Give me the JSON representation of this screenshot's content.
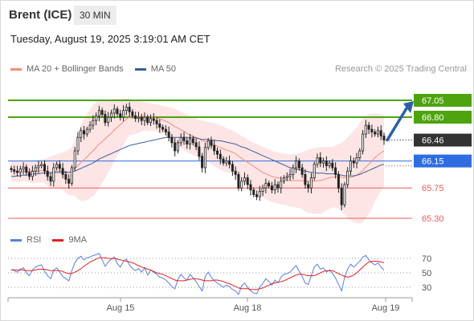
{
  "header": {
    "instrument": "Brent (ICE)",
    "timeframe": "30 MIN",
    "datetime": "Tuesday, August 19, 2025 3:19:01 AM CET"
  },
  "legend_main": {
    "ma20": {
      "label": "MA 20 + Bollinger Bands",
      "color": "#f28b82"
    },
    "ma50": {
      "label": "MA 50",
      "color": "#3d5c98"
    }
  },
  "legend_rsi": {
    "rsi": {
      "label": "RSI",
      "color": "#5b7fd6"
    },
    "ma9": {
      "label": "9MA",
      "color": "#e02020"
    }
  },
  "credit": "Research © 2025 Trading Central",
  "chart_data": [
    {
      "type": "candlestick",
      "ylim": [
        65.2,
        67.15
      ],
      "x_ticks": [
        "Aug 15",
        "Aug 18",
        "Aug 19"
      ],
      "current_price": {
        "value": 66.46,
        "label": "66.46",
        "color": "#333333"
      },
      "levels": [
        {
          "value": 67.05,
          "label": "67.05",
          "type": "resistance",
          "color": "#4ea30e"
        },
        {
          "value": 66.8,
          "label": "66.80",
          "type": "resistance",
          "color": "#4ea30e"
        },
        {
          "value": 66.15,
          "label": "66.15",
          "type": "pivot",
          "color": "#2f6de1"
        },
        {
          "value": 65.75,
          "label": "65.75",
          "type": "support",
          "color": "#e85c5c"
        },
        {
          "value": 65.3,
          "label": "65.30",
          "type": "support",
          "color": "#e85c5c"
        }
      ],
      "close_series": [
        66.02,
        66.0,
        65.98,
        66.03,
        66.06,
        65.98,
        65.92,
        66.0,
        66.05,
        66.08,
        66.1,
        66.0,
        65.92,
        65.85,
        66.05,
        66.1,
        66.04,
        65.95,
        65.88,
        65.82,
        66.05,
        66.3,
        66.5,
        66.6,
        66.55,
        66.62,
        66.68,
        66.75,
        66.82,
        66.9,
        66.84,
        66.72,
        66.8,
        66.86,
        66.92,
        66.85,
        66.8,
        66.9,
        66.95,
        66.88,
        66.82,
        66.78,
        66.8,
        66.75,
        66.8,
        66.72,
        66.78,
        66.75,
        66.7,
        66.65,
        66.62,
        66.58,
        66.5,
        66.42,
        66.3,
        66.42,
        66.5,
        66.45,
        66.4,
        66.48,
        66.42,
        66.36,
        66.22,
        66.05,
        66.35,
        66.45,
        66.38,
        66.3,
        66.25,
        66.18,
        66.12,
        66.15,
        66.1,
        66.0,
        65.95,
        65.75,
        65.85,
        65.9,
        65.8,
        65.72,
        65.65,
        65.62,
        65.7,
        65.75,
        65.82,
        65.78,
        65.72,
        65.8,
        65.75,
        65.85,
        65.9,
        65.92,
        65.95,
        66.05,
        66.15,
        66.05,
        65.95,
        65.8,
        65.75,
        65.9,
        66.1,
        66.2,
        66.12,
        66.15,
        66.08,
        66.12,
        66.05,
        65.95,
        65.75,
        65.5,
        65.8,
        66.0,
        66.15,
        66.12,
        66.2,
        66.3,
        66.55,
        66.68,
        66.62,
        66.58,
        66.55,
        66.6,
        66.52,
        66.46
      ],
      "ma20_series": [
        66.0,
        65.99,
        65.99,
        65.99,
        66.0,
        66.0,
        65.99,
        65.99,
        65.99,
        66.0,
        66.01,
        66.0,
        65.99,
        65.98,
        65.99,
        66.0,
        66.0,
        66.0,
        65.99,
        65.98,
        66.0,
        66.04,
        66.08,
        66.13,
        66.17,
        66.21,
        66.26,
        66.3,
        66.35,
        66.4,
        66.44,
        66.48,
        66.52,
        66.56,
        66.61,
        66.65,
        66.69,
        66.73,
        66.77,
        66.8,
        66.8,
        66.8,
        66.8,
        66.81,
        66.81,
        66.8,
        66.8,
        66.8,
        66.79,
        66.77,
        66.76,
        66.74,
        66.72,
        66.69,
        66.66,
        66.64,
        66.61,
        66.59,
        66.56,
        66.54,
        66.52,
        66.5,
        66.48,
        66.45,
        66.44,
        66.43,
        66.41,
        66.39,
        66.37,
        66.35,
        66.33,
        66.31,
        66.3,
        66.28,
        66.26,
        66.22,
        66.19,
        66.16,
        66.13,
        66.1,
        66.07,
        66.04,
        66.01,
        65.98,
        65.96,
        65.94,
        65.92,
        65.91,
        65.9,
        65.89,
        65.88,
        65.87,
        65.86,
        65.86,
        65.86,
        65.86,
        65.86,
        65.85,
        65.85,
        65.85,
        65.85,
        65.86,
        65.86,
        65.87,
        65.89,
        65.9,
        65.91,
        65.92,
        65.92,
        65.91,
        65.9,
        65.9,
        65.91,
        65.92,
        65.94,
        65.97,
        66.01,
        66.06,
        66.1,
        66.15,
        66.2,
        66.24,
        66.27,
        66.3
      ],
      "bb_upper_series": [
        66.15,
        66.14,
        66.14,
        66.14,
        66.15,
        66.15,
        66.15,
        66.16,
        66.16,
        66.17,
        66.18,
        66.18,
        66.2,
        66.22,
        66.23,
        66.25,
        66.26,
        66.28,
        66.3,
        66.32,
        66.36,
        66.45,
        66.58,
        66.7,
        66.78,
        66.85,
        66.92,
        66.98,
        67.02,
        67.05,
        67.06,
        67.06,
        67.06,
        67.06,
        67.07,
        67.07,
        67.07,
        67.07,
        67.08,
        67.07,
        67.06,
        67.05,
        67.04,
        67.03,
        67.02,
        67.01,
        67.0,
        67.0,
        66.99,
        66.98,
        66.97,
        66.96,
        66.95,
        66.94,
        66.92,
        66.9,
        66.88,
        66.86,
        66.84,
        66.82,
        66.8,
        66.78,
        66.76,
        66.75,
        66.74,
        66.73,
        66.72,
        66.71,
        66.7,
        66.68,
        66.66,
        66.64,
        66.62,
        66.6,
        66.58,
        66.55,
        66.52,
        66.5,
        66.47,
        66.44,
        66.42,
        66.4,
        66.38,
        66.36,
        66.34,
        66.32,
        66.3,
        66.29,
        66.28,
        66.27,
        66.26,
        66.25,
        66.25,
        66.25,
        66.26,
        66.27,
        66.28,
        66.3,
        66.32,
        66.33,
        66.34,
        66.35,
        66.36,
        66.36,
        66.36,
        66.36,
        66.36,
        66.38,
        66.4,
        66.42,
        66.45,
        66.5,
        66.55,
        66.6,
        66.65,
        66.72,
        66.78,
        66.82,
        66.84,
        66.85,
        66.85,
        66.85,
        66.84,
        66.83
      ],
      "bb_lower_series": [
        65.85,
        65.84,
        65.84,
        65.84,
        65.85,
        65.85,
        65.83,
        65.82,
        65.82,
        65.83,
        65.84,
        65.82,
        65.78,
        65.74,
        65.75,
        65.75,
        65.74,
        65.72,
        65.68,
        65.64,
        65.64,
        65.63,
        65.58,
        65.56,
        65.56,
        65.57,
        65.6,
        65.62,
        65.68,
        65.75,
        65.82,
        65.9,
        65.98,
        66.06,
        66.15,
        66.23,
        66.31,
        66.39,
        66.46,
        66.53,
        66.54,
        66.55,
        66.56,
        66.59,
        66.6,
        66.59,
        66.6,
        66.6,
        66.59,
        66.56,
        66.55,
        66.52,
        66.49,
        66.44,
        66.4,
        66.38,
        66.34,
        66.32,
        66.28,
        66.26,
        66.24,
        66.22,
        66.2,
        66.15,
        66.14,
        66.13,
        66.1,
        66.07,
        66.04,
        66.02,
        66.0,
        65.98,
        65.98,
        65.96,
        65.94,
        65.89,
        65.86,
        65.82,
        65.79,
        65.76,
        65.72,
        65.68,
        65.64,
        65.6,
        65.58,
        65.56,
        65.54,
        65.53,
        65.52,
        65.51,
        65.5,
        65.49,
        65.47,
        65.47,
        65.46,
        65.45,
        65.44,
        65.4,
        65.38,
        65.37,
        65.36,
        65.37,
        65.36,
        65.38,
        65.42,
        65.44,
        65.46,
        65.46,
        65.44,
        65.4,
        65.35,
        65.3,
        65.27,
        65.24,
        65.23,
        65.22,
        65.24,
        65.3,
        65.36,
        65.45,
        65.55,
        65.63,
        65.7,
        65.77
      ],
      "ma50_series": [
        65.92,
        65.92,
        65.93,
        65.93,
        65.94,
        65.94,
        65.95,
        65.95,
        65.96,
        65.96,
        65.97,
        65.97,
        65.97,
        65.97,
        65.98,
        65.98,
        65.98,
        65.98,
        65.98,
        65.98,
        65.99,
        66.0,
        66.02,
        66.04,
        66.06,
        66.08,
        66.1,
        66.12,
        66.15,
        66.18,
        66.2,
        66.22,
        66.24,
        66.26,
        66.28,
        66.3,
        66.32,
        66.34,
        66.36,
        66.38,
        66.39,
        66.4,
        66.41,
        66.42,
        66.43,
        66.44,
        66.45,
        66.46,
        66.47,
        66.48,
        66.49,
        66.5,
        66.5,
        66.5,
        66.5,
        66.5,
        66.5,
        66.5,
        66.5,
        66.5,
        66.5,
        66.49,
        66.48,
        66.47,
        66.47,
        66.47,
        66.46,
        66.46,
        66.45,
        66.45,
        66.44,
        66.43,
        66.42,
        66.41,
        66.4,
        66.38,
        66.36,
        66.35,
        66.33,
        66.31,
        66.29,
        66.27,
        66.25,
        66.23,
        66.21,
        66.19,
        66.17,
        66.15,
        66.13,
        66.11,
        66.09,
        66.07,
        66.05,
        66.04,
        66.03,
        66.02,
        66.01,
        66.0,
        65.99,
        65.98,
        65.98,
        65.97,
        65.97,
        65.97,
        65.96,
        65.96,
        65.96,
        65.96,
        65.95,
        65.94,
        65.93,
        65.93,
        65.93,
        65.93,
        65.94,
        65.95,
        65.97,
        65.99,
        66.01,
        66.03,
        66.05,
        66.07,
        66.09,
        66.1
      ]
    },
    {
      "type": "line",
      "name": "RSI",
      "ylim": [
        20,
        80
      ],
      "y_ticks": [
        70,
        50,
        30
      ],
      "rsi_series": [
        55,
        53,
        51,
        55,
        57,
        50,
        46,
        54,
        58,
        60,
        61,
        52,
        46,
        42,
        54,
        57,
        51,
        45,
        42,
        39,
        53,
        64,
        70,
        73,
        68,
        71,
        72,
        74,
        75,
        77,
        68,
        59,
        65,
        69,
        72,
        63,
        58,
        66,
        69,
        61,
        56,
        53,
        56,
        51,
        57,
        47,
        54,
        51,
        48,
        44,
        43,
        40,
        36,
        31,
        28,
        41,
        48,
        43,
        40,
        48,
        43,
        38,
        31,
        25,
        45,
        51,
        44,
        39,
        36,
        33,
        30,
        33,
        31,
        27,
        25,
        20,
        32,
        36,
        30,
        25,
        22,
        21,
        30,
        35,
        42,
        38,
        33,
        40,
        36,
        44,
        48,
        49,
        51,
        56,
        60,
        52,
        45,
        36,
        34,
        46,
        58,
        62,
        55,
        57,
        51,
        54,
        49,
        43,
        34,
        25,
        44,
        55,
        62,
        58,
        62,
        66,
        72,
        74,
        68,
        64,
        61,
        64,
        58,
        54
      ],
      "ma9_series": [
        54,
        54,
        54,
        54,
        54,
        53,
        53,
        53,
        54,
        55,
        55,
        55,
        54,
        53,
        53,
        53,
        53,
        52,
        50,
        49,
        49,
        51,
        53,
        56,
        59,
        62,
        65,
        67,
        69,
        71,
        71,
        71,
        70,
        70,
        70,
        69,
        68,
        67,
        66,
        65,
        64,
        62,
        60,
        58,
        57,
        55,
        54,
        52,
        50,
        49,
        48,
        46,
        44,
        42,
        40,
        39,
        39,
        39,
        40,
        41,
        42,
        42,
        41,
        40,
        39,
        39,
        39,
        40,
        40,
        39,
        38,
        36,
        35,
        33,
        31,
        29,
        28,
        28,
        28,
        27,
        27,
        27,
        28,
        29,
        31,
        33,
        35,
        36,
        37,
        38,
        39,
        41,
        43,
        45,
        47,
        48,
        48,
        47,
        46,
        46,
        46,
        48,
        50,
        52,
        53,
        53,
        53,
        51,
        49,
        47,
        45,
        44,
        45,
        47,
        50,
        54,
        58,
        62,
        65,
        66,
        66,
        66,
        65,
        64
      ]
    }
  ]
}
